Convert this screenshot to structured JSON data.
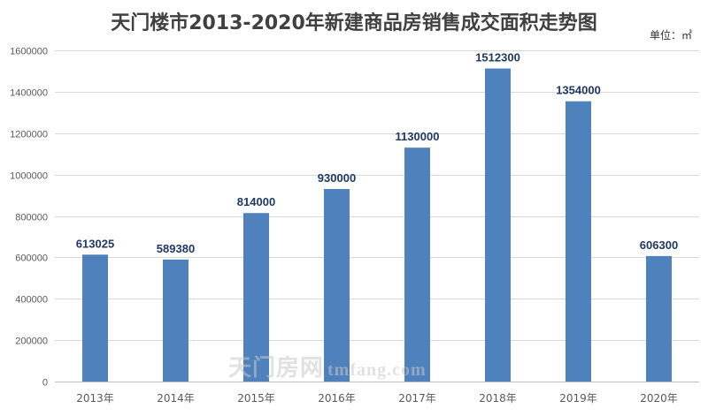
{
  "chart_data": {
    "type": "bar",
    "title": "天门楼市2013-2020年新建商品房销售成交面积走势图",
    "unit_label": "单位：㎡",
    "categories": [
      "2013年",
      "2014年",
      "2015年",
      "2016年",
      "2017年",
      "2018年",
      "2019年",
      "2020年"
    ],
    "values": [
      613025,
      589380,
      814000,
      930000,
      1130000,
      1512300,
      1354000,
      606300
    ],
    "data_labels": [
      "613025",
      "589380",
      "814000",
      "930000",
      "1130000",
      "1512300",
      "1354000",
      "606300"
    ],
    "y_ticks": [
      "0",
      "200000",
      "400000",
      "600000",
      "800000",
      "1000000",
      "1200000",
      "1400000",
      "1600000"
    ],
    "ylim": [
      0,
      1600000
    ],
    "grid": true,
    "bar_color": "#4f81bd",
    "label_color": "#1f3864"
  },
  "watermark": {
    "text": "天门房网",
    "url": "tmfang.com"
  }
}
